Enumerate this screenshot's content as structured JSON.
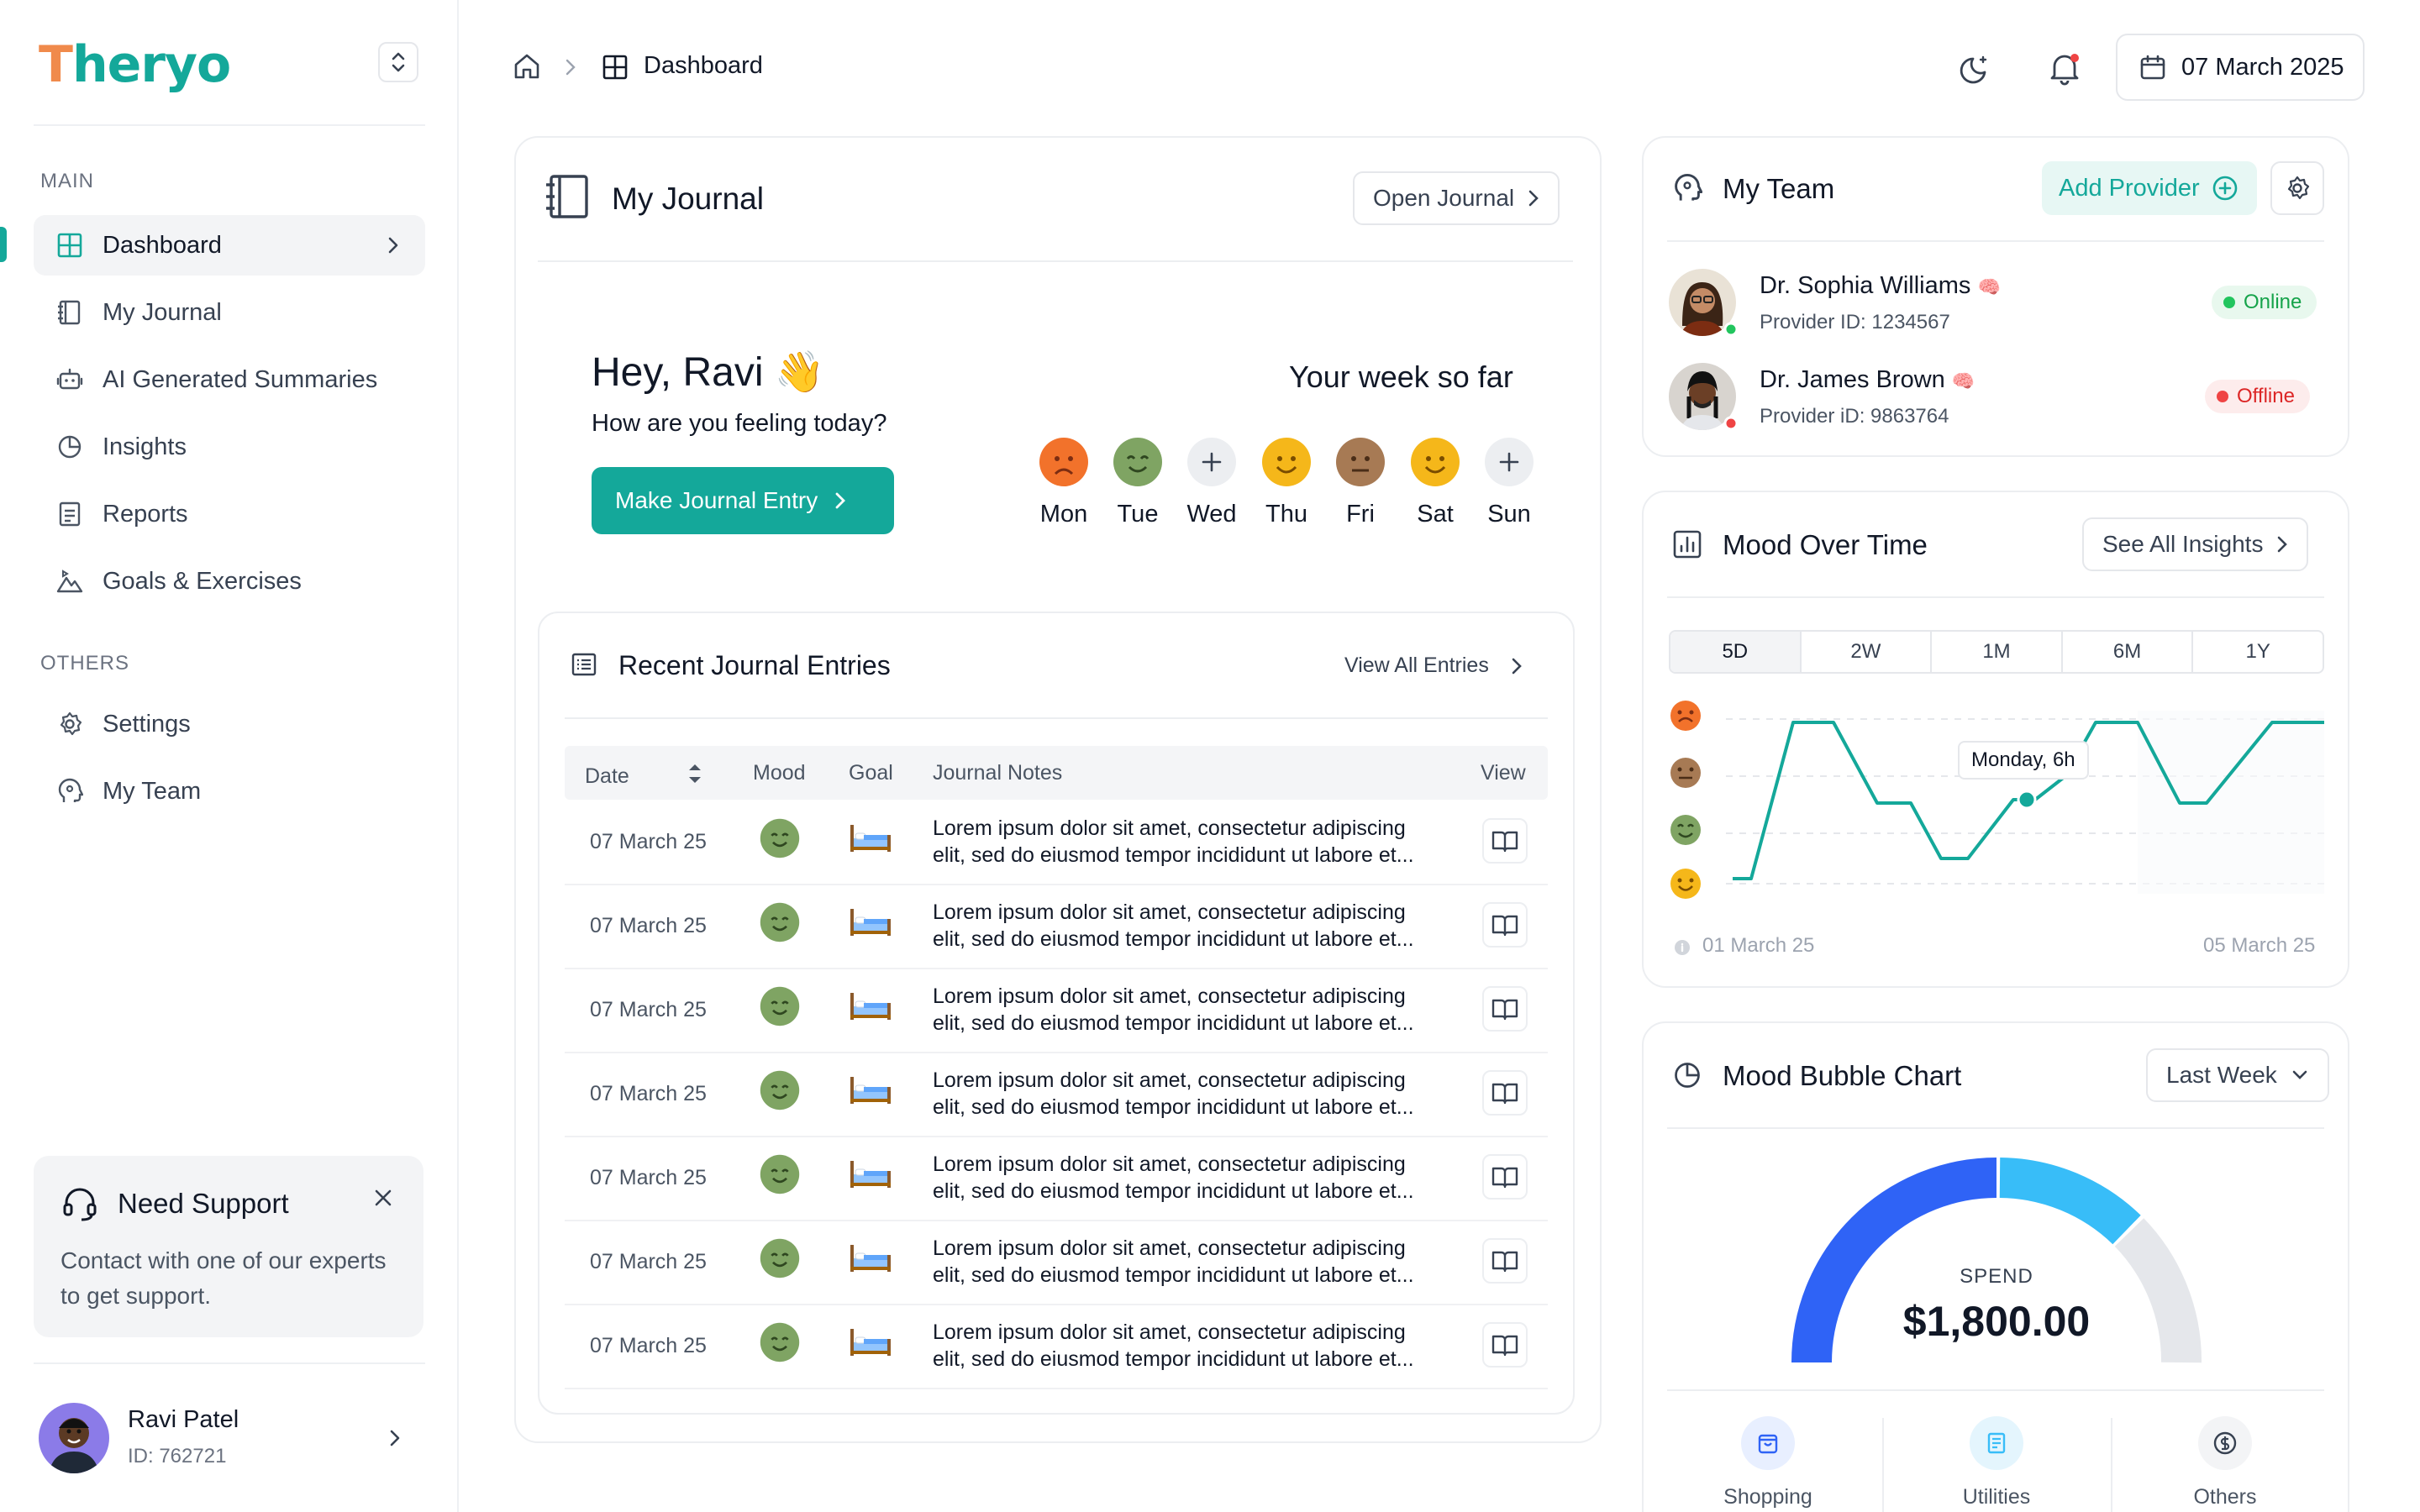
{
  "brand": {
    "name_first": "T",
    "name_rest": "heryo"
  },
  "sidebar": {
    "section_main": "MAIN",
    "section_others": "OTHERS",
    "items": [
      {
        "label": "Dashboard",
        "icon": "grid-icon"
      },
      {
        "label": "My Journal",
        "icon": "notebook-icon"
      },
      {
        "label": "AI Generated Summaries",
        "icon": "robot-icon"
      },
      {
        "label": "Insights",
        "icon": "pie-chart-icon"
      },
      {
        "label": "Reports",
        "icon": "document-icon"
      },
      {
        "label": "Goals & Exercises",
        "icon": "mountain-icon"
      }
    ],
    "others": [
      {
        "label": "Settings",
        "icon": "gear-icon"
      },
      {
        "label": "My Team",
        "icon": "head-icon"
      }
    ],
    "support": {
      "title": "Need Support",
      "text": "Contact with one of our experts to get support."
    },
    "user": {
      "name": "Ravi Patel",
      "id": "ID: 762721"
    }
  },
  "header": {
    "breadcrumb": "Dashboard",
    "date": "07 March 2025"
  },
  "journal": {
    "title": "My Journal",
    "open_label": "Open Journal",
    "greeting": "Hey, Ravi",
    "greeting_emoji": "👋",
    "question": "How are you feeling today?",
    "entry_button": "Make Journal Entry",
    "week_title": "Your week so far",
    "week": [
      {
        "day": "Mon",
        "mood": "sad"
      },
      {
        "day": "Tue",
        "mood": "content"
      },
      {
        "day": "Wed",
        "mood": "empty"
      },
      {
        "day": "Thu",
        "mood": "happy"
      },
      {
        "day": "Fri",
        "mood": "neutral"
      },
      {
        "day": "Sat",
        "mood": "happy"
      },
      {
        "day": "Sun",
        "mood": "empty"
      }
    ]
  },
  "entries": {
    "title": "Recent Journal Entries",
    "view_all": "View All Entries",
    "columns": {
      "date": "Date",
      "mood": "Mood",
      "goal": "Goal",
      "notes": "Journal Notes",
      "view": "View"
    },
    "rows": [
      {
        "date": "07 March 25",
        "note1": "Lorem ipsum dolor sit amet, consectetur adipiscing",
        "note2": "elit, sed do eiusmod tempor incididunt ut labore et..."
      },
      {
        "date": "07 March 25",
        "note1": "Lorem ipsum dolor sit amet, consectetur adipiscing",
        "note2": "elit, sed do eiusmod tempor incididunt ut labore et..."
      },
      {
        "date": "07 March 25",
        "note1": "Lorem ipsum dolor sit amet, consectetur adipiscing",
        "note2": "elit, sed do eiusmod tempor incididunt ut labore et..."
      },
      {
        "date": "07 March 25",
        "note1": "Lorem ipsum dolor sit amet, consectetur adipiscing",
        "note2": "elit, sed do eiusmod tempor incididunt ut labore et..."
      },
      {
        "date": "07 March 25",
        "note1": "Lorem ipsum dolor sit amet, consectetur adipiscing",
        "note2": "elit, sed do eiusmod tempor incididunt ut labore et..."
      },
      {
        "date": "07 March 25",
        "note1": "Lorem ipsum dolor sit amet, consectetur adipiscing",
        "note2": "elit, sed do eiusmod tempor incididunt ut labore et..."
      },
      {
        "date": "07 March 25",
        "note1": "Lorem ipsum dolor sit amet, consectetur adipiscing",
        "note2": "elit, sed do eiusmod tempor incididunt ut labore et..."
      }
    ]
  },
  "team": {
    "title": "My Team",
    "add_label": "Add Provider",
    "providers": [
      {
        "name": "Dr. Sophia Williams",
        "emoji": "🧠",
        "id": "Provider ID: 1234567",
        "status": "Online"
      },
      {
        "name": "Dr. James Brown",
        "emoji": "🧠",
        "id": "Provider iD: 9863764",
        "status": "Offline"
      }
    ]
  },
  "mood_time": {
    "title": "Mood Over Time",
    "see_all": "See All Insights",
    "ranges": [
      "5D",
      "2W",
      "1M",
      "6M",
      "1Y"
    ],
    "selected_range": "5D",
    "tooltip": "Monday, 6h",
    "start_label": "01 March 25",
    "end_label": "05 March 25"
  },
  "bubble": {
    "title": "Mood Bubble Chart",
    "period": "Last Week",
    "spend_label": "SPEND",
    "spend_value": "$1,800.00",
    "categories": [
      "Shopping",
      "Utilities",
      "Others"
    ]
  },
  "colors": {
    "accent": "#14a89a",
    "blue": "#2f63f6",
    "sky": "#38bdf8",
    "track": "#e5e7eb"
  }
}
